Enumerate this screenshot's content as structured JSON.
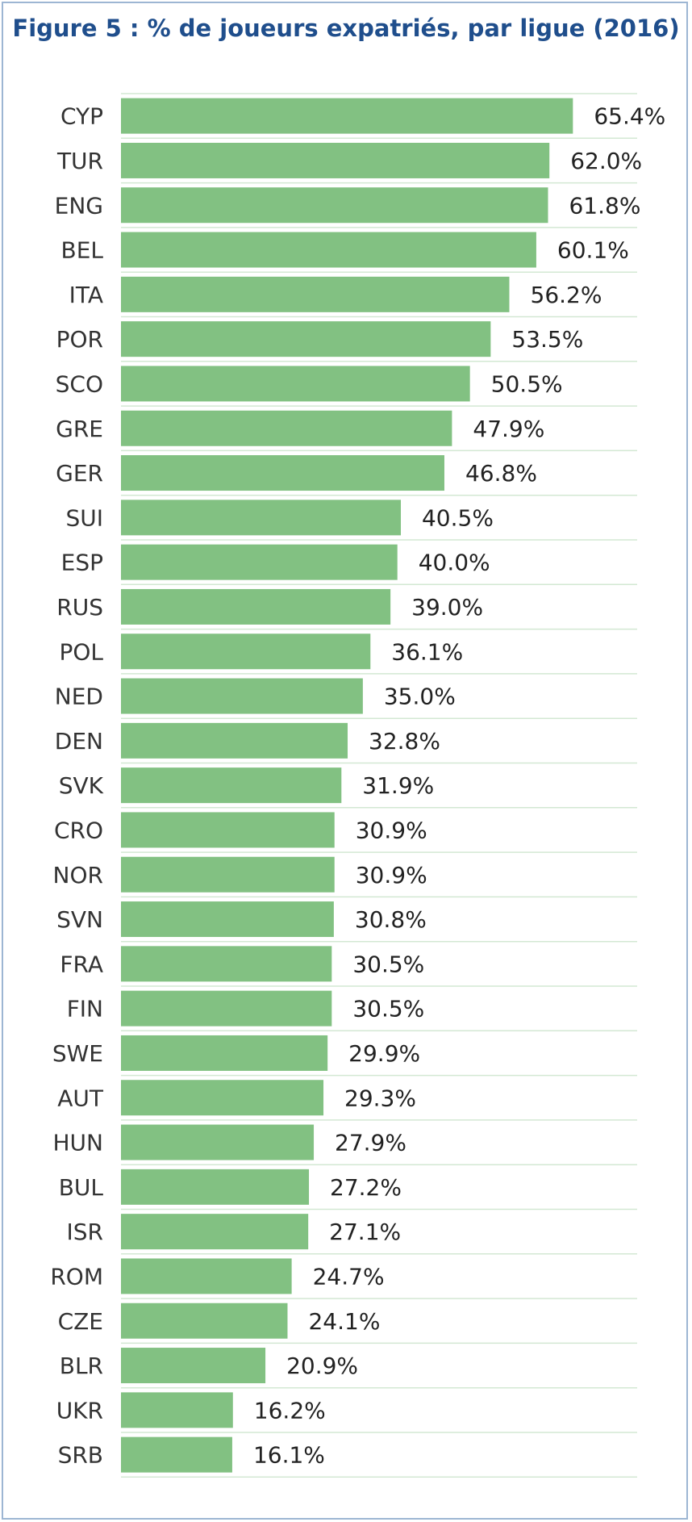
{
  "chart_data": {
    "type": "bar",
    "orientation": "horizontal",
    "title": "Figure 5 : % de joueurs expatriés, par ligue (2016)",
    "xlabel": "",
    "ylabel": "",
    "xlim": [
      0,
      78.2
    ],
    "grid": false,
    "legend": "none",
    "bar_color": "#82c182",
    "title_color": "#1f4e8c",
    "categories": [
      "CYP",
      "TUR",
      "ENG",
      "BEL",
      "ITA",
      "POR",
      "SCO",
      "GRE",
      "GER",
      "SUI",
      "ESP",
      "RUS",
      "POL",
      "NED",
      "DEN",
      "SVK",
      "CRO",
      "NOR",
      "SVN",
      "FRA",
      "FIN",
      "SWE",
      "AUT",
      "HUN",
      "BUL",
      "ISR",
      "ROM",
      "CZE",
      "BLR",
      "UKR",
      "SRB"
    ],
    "values": [
      65.4,
      62.0,
      61.8,
      60.1,
      56.2,
      53.5,
      50.5,
      47.9,
      46.8,
      40.5,
      40.0,
      39.0,
      36.1,
      35.0,
      32.8,
      31.9,
      30.9,
      30.9,
      30.8,
      30.5,
      30.5,
      29.9,
      29.3,
      27.9,
      27.2,
      27.1,
      24.7,
      24.1,
      20.9,
      16.2,
      16.1
    ],
    "value_labels": [
      "65.4%",
      "62.0%",
      "61.8%",
      "60.1%",
      "56.2%",
      "53.5%",
      "50.5%",
      "47.9%",
      "46.8%",
      "40.5%",
      "40.0%",
      "39.0%",
      "36.1%",
      "35.0%",
      "32.8%",
      "31.9%",
      "30.9%",
      "30.9%",
      "30.8%",
      "30.5%",
      "30.5%",
      "29.9%",
      "29.3%",
      "27.9%",
      "27.2%",
      "27.1%",
      "24.7%",
      "24.1%",
      "20.9%",
      "16.2%",
      "16.1%"
    ]
  }
}
